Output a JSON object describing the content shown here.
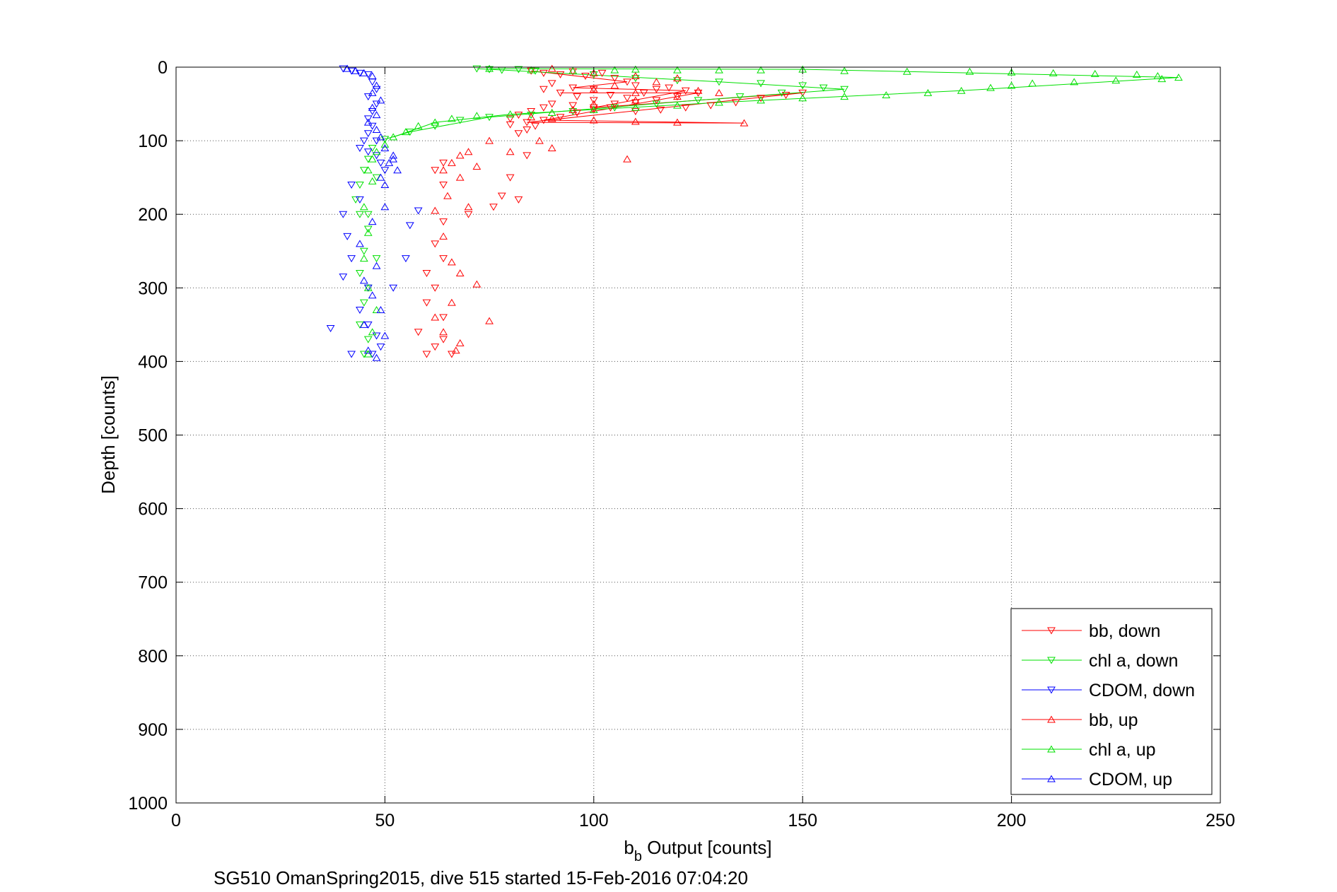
{
  "chart_data": {
    "type": "scatter",
    "title": "",
    "xlabel": {
      "main": "b",
      "sub": "b",
      "rest": " Output [counts]"
    },
    "ylabel": "Depth [counts]",
    "caption": "SG510 OmanSpring2015, dive 515 started 15-Feb-2016 07:04:20",
    "xlim": [
      0,
      250
    ],
    "ylim": [
      0,
      1000
    ],
    "y_reversed": true,
    "grid": true,
    "legend_position": "bottom-right",
    "xticks": [
      "0",
      "50",
      "100",
      "150",
      "200",
      "250"
    ],
    "yticks": [
      "0",
      "100",
      "200",
      "300",
      "400",
      "500",
      "600",
      "700",
      "800",
      "900",
      "1000"
    ],
    "colors": {
      "red": "#ff0000",
      "green": "#00e000",
      "blue": "#0000ff"
    },
    "series": [
      {
        "name": "bb, down",
        "color": "#ff0000",
        "marker": "triangle-down",
        "points": [
          [
            85,
            5
          ],
          [
            88,
            8
          ],
          [
            92,
            10
          ],
          [
            95,
            6
          ],
          [
            98,
            12
          ],
          [
            102,
            8
          ],
          [
            105,
            15
          ],
          [
            108,
            20
          ],
          [
            110,
            25
          ],
          [
            100,
            30
          ],
          [
            95,
            28
          ],
          [
            90,
            22
          ],
          [
            88,
            30
          ],
          [
            92,
            35
          ],
          [
            96,
            40
          ],
          [
            100,
            45
          ],
          [
            104,
            38
          ],
          [
            108,
            42
          ],
          [
            112,
            35
          ],
          [
            115,
            30
          ],
          [
            118,
            28
          ],
          [
            122,
            32
          ],
          [
            125,
            35
          ],
          [
            120,
            40
          ],
          [
            115,
            45
          ],
          [
            110,
            48
          ],
          [
            105,
            50
          ],
          [
            100,
            55
          ],
          [
            95,
            52
          ],
          [
            90,
            50
          ],
          [
            88,
            55
          ],
          [
            85,
            60
          ],
          [
            82,
            65
          ],
          [
            80,
            70
          ],
          [
            84,
            75
          ],
          [
            88,
            72
          ],
          [
            92,
            68
          ],
          [
            96,
            62
          ],
          [
            100,
            58
          ],
          [
            104,
            55
          ],
          [
            110,
            60
          ],
          [
            116,
            58
          ],
          [
            122,
            55
          ],
          [
            128,
            52
          ],
          [
            134,
            48
          ],
          [
            140,
            42
          ],
          [
            146,
            38
          ],
          [
            150,
            35
          ],
          [
            86,
            80
          ],
          [
            84,
            85
          ],
          [
            82,
            90
          ],
          [
            80,
            78
          ],
          [
            84,
            120
          ],
          [
            80,
            150
          ],
          [
            78,
            175
          ],
          [
            82,
            180
          ],
          [
            76,
            190
          ],
          [
            64,
            130
          ],
          [
            62,
            140
          ],
          [
            64,
            160
          ],
          [
            70,
            200
          ],
          [
            64,
            210
          ],
          [
            62,
            240
          ],
          [
            64,
            260
          ],
          [
            60,
            280
          ],
          [
            62,
            300
          ],
          [
            60,
            320
          ],
          [
            64,
            340
          ],
          [
            58,
            360
          ],
          [
            62,
            380
          ],
          [
            60,
            390
          ],
          [
            66,
            390
          ],
          [
            64,
            370
          ]
        ]
      },
      {
        "name": "chl a, down",
        "color": "#00e000",
        "marker": "triangle-down",
        "points": [
          [
            72,
            2
          ],
          [
            75,
            3
          ],
          [
            78,
            4
          ],
          [
            82,
            3
          ],
          [
            86,
            5
          ],
          [
            100,
            10
          ],
          [
            110,
            15
          ],
          [
            120,
            18
          ],
          [
            130,
            20
          ],
          [
            140,
            22
          ],
          [
            150,
            25
          ],
          [
            160,
            30
          ],
          [
            155,
            28
          ],
          [
            145,
            35
          ],
          [
            135,
            40
          ],
          [
            125,
            45
          ],
          [
            115,
            50
          ],
          [
            105,
            55
          ],
          [
            95,
            60
          ],
          [
            85,
            65
          ],
          [
            75,
            68
          ],
          [
            68,
            72
          ],
          [
            62,
            80
          ],
          [
            56,
            88
          ],
          [
            50,
            98
          ],
          [
            47,
            110
          ],
          [
            46,
            125
          ],
          [
            45,
            140
          ],
          [
            44,
            160
          ],
          [
            43,
            180
          ],
          [
            44,
            200
          ],
          [
            46,
            220
          ],
          [
            45,
            250
          ],
          [
            44,
            280
          ],
          [
            46,
            300
          ],
          [
            45,
            320
          ],
          [
            44,
            350
          ],
          [
            46,
            370
          ],
          [
            45,
            390
          ],
          [
            48,
            150
          ],
          [
            46,
            200
          ],
          [
            48,
            260
          ]
        ]
      },
      {
        "name": "CDOM, down",
        "color": "#0000ff",
        "marker": "triangle-down",
        "points": [
          [
            40,
            2
          ],
          [
            42,
            5
          ],
          [
            44,
            8
          ],
          [
            46,
            10
          ],
          [
            47,
            20
          ],
          [
            48,
            30
          ],
          [
            46,
            40
          ],
          [
            48,
            50
          ],
          [
            47,
            60
          ],
          [
            46,
            70
          ],
          [
            47,
            80
          ],
          [
            46,
            90
          ],
          [
            45,
            100
          ],
          [
            44,
            110
          ],
          [
            48,
            120
          ],
          [
            49,
            130
          ],
          [
            50,
            140
          ],
          [
            48,
            100
          ],
          [
            46,
            115
          ],
          [
            42,
            160
          ],
          [
            44,
            180
          ],
          [
            40,
            200
          ],
          [
            41,
            230
          ],
          [
            42,
            260
          ],
          [
            40,
            285
          ],
          [
            46,
            300
          ],
          [
            44,
            330
          ],
          [
            46,
            350
          ],
          [
            37,
            355
          ],
          [
            48,
            365
          ],
          [
            42,
            390
          ],
          [
            47,
            390
          ],
          [
            49,
            380
          ],
          [
            58,
            195
          ],
          [
            56,
            215
          ],
          [
            55,
            260
          ],
          [
            52,
            300
          ]
        ]
      },
      {
        "name": "bb, up",
        "color": "#ff0000",
        "marker": "triangle-up",
        "points": [
          [
            90,
            2
          ],
          [
            95,
            5
          ],
          [
            100,
            8
          ],
          [
            110,
            12
          ],
          [
            120,
            15
          ],
          [
            115,
            20
          ],
          [
            105,
            25
          ],
          [
            100,
            30
          ],
          [
            110,
            35
          ],
          [
            125,
            32
          ],
          [
            130,
            35
          ],
          [
            120,
            40
          ],
          [
            110,
            45
          ],
          [
            100,
            50
          ],
          [
            95,
            58
          ],
          [
            90,
            62
          ],
          [
            85,
            68
          ],
          [
            90,
            70
          ],
          [
            100,
            72
          ],
          [
            110,
            74
          ],
          [
            120,
            75
          ],
          [
            136,
            76
          ],
          [
            108,
            125
          ],
          [
            90,
            110
          ],
          [
            87,
            100
          ],
          [
            80,
            115
          ],
          [
            75,
            100
          ],
          [
            70,
            115
          ],
          [
            68,
            120
          ],
          [
            66,
            130
          ],
          [
            64,
            140
          ],
          [
            68,
            150
          ],
          [
            72,
            135
          ],
          [
            65,
            175
          ],
          [
            70,
            190
          ],
          [
            62,
            195
          ],
          [
            64,
            230
          ],
          [
            66,
            265
          ],
          [
            68,
            280
          ],
          [
            72,
            295
          ],
          [
            66,
            320
          ],
          [
            62,
            340
          ],
          [
            75,
            345
          ],
          [
            64,
            360
          ],
          [
            68,
            375
          ],
          [
            67,
            385
          ]
        ]
      },
      {
        "name": "chl a, up",
        "color": "#00e000",
        "marker": "triangle-up",
        "points": [
          [
            75,
            2
          ],
          [
            85,
            4
          ],
          [
            95,
            5
          ],
          [
            105,
            4
          ],
          [
            110,
            3
          ],
          [
            120,
            4
          ],
          [
            130,
            4
          ],
          [
            140,
            4
          ],
          [
            150,
            3
          ],
          [
            160,
            5
          ],
          [
            175,
            6
          ],
          [
            190,
            6
          ],
          [
            200,
            7
          ],
          [
            210,
            8
          ],
          [
            220,
            9
          ],
          [
            230,
            10
          ],
          [
            235,
            12
          ],
          [
            240,
            14
          ],
          [
            236,
            16
          ],
          [
            225,
            18
          ],
          [
            215,
            20
          ],
          [
            205,
            22
          ],
          [
            200,
            25
          ],
          [
            195,
            28
          ],
          [
            188,
            32
          ],
          [
            180,
            35
          ],
          [
            170,
            38
          ],
          [
            160,
            40
          ],
          [
            150,
            42
          ],
          [
            140,
            45
          ],
          [
            130,
            48
          ],
          [
            120,
            52
          ],
          [
            110,
            55
          ],
          [
            100,
            58
          ],
          [
            90,
            62
          ],
          [
            80,
            64
          ],
          [
            72,
            66
          ],
          [
            66,
            70
          ],
          [
            62,
            75
          ],
          [
            58,
            80
          ],
          [
            55,
            88
          ],
          [
            52,
            95
          ],
          [
            50,
            105
          ],
          [
            48,
            115
          ],
          [
            47,
            125
          ],
          [
            46,
            140
          ],
          [
            47,
            155
          ],
          [
            45,
            190
          ],
          [
            46,
            225
          ],
          [
            45,
            260
          ],
          [
            46,
            300
          ],
          [
            48,
            330
          ],
          [
            47,
            360
          ],
          [
            46,
            390
          ]
        ]
      },
      {
        "name": "CDOM, up",
        "color": "#0000ff",
        "marker": "triangle-up",
        "points": [
          [
            41,
            2
          ],
          [
            43,
            5
          ],
          [
            45,
            8
          ],
          [
            47,
            12
          ],
          [
            48,
            25
          ],
          [
            47,
            35
          ],
          [
            49,
            45
          ],
          [
            47,
            55
          ],
          [
            48,
            65
          ],
          [
            46,
            75
          ],
          [
            48,
            85
          ],
          [
            49,
            95
          ],
          [
            50,
            110
          ],
          [
            52,
            120
          ],
          [
            51,
            130
          ],
          [
            53,
            140
          ],
          [
            49,
            150
          ],
          [
            50,
            160
          ],
          [
            52,
            125
          ],
          [
            50,
            190
          ],
          [
            47,
            210
          ],
          [
            44,
            240
          ],
          [
            48,
            270
          ],
          [
            45,
            290
          ],
          [
            47,
            310
          ],
          [
            49,
            330
          ],
          [
            45,
            350
          ],
          [
            50,
            365
          ],
          [
            46,
            385
          ],
          [
            48,
            395
          ]
        ]
      }
    ],
    "lines": [
      {
        "color": "#ff0000",
        "points": [
          [
            85,
            5
          ],
          [
            108,
            20
          ],
          [
            95,
            28
          ],
          [
            122,
            32
          ],
          [
            100,
            55
          ],
          [
            150,
            35
          ],
          [
            84,
            75
          ],
          [
            136,
            76
          ],
          [
            88,
            72
          ],
          [
            125,
            35
          ],
          [
            92,
            35
          ]
        ]
      },
      {
        "color": "#00e000",
        "points": [
          [
            72,
            2
          ],
          [
            130,
            20
          ],
          [
            160,
            30
          ],
          [
            125,
            45
          ],
          [
            75,
            68
          ],
          [
            56,
            88
          ],
          [
            50,
            98
          ]
        ]
      },
      {
        "color": "#00e000",
        "points": [
          [
            75,
            2
          ],
          [
            150,
            3
          ],
          [
            240,
            14
          ],
          [
            188,
            32
          ],
          [
            130,
            48
          ],
          [
            80,
            64
          ],
          [
            62,
            75
          ],
          [
            52,
            95
          ]
        ]
      }
    ]
  }
}
